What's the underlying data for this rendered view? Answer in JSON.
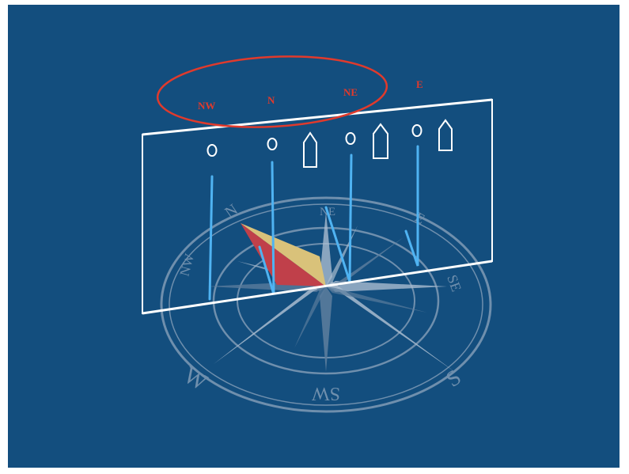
{
  "colors": {
    "background": "#134e7e",
    "compass_line": "#6f8fad",
    "star_light": "#a9bccf",
    "star_dark": "#5a7c9c",
    "pointer_red": "#c0404a",
    "pointer_yellow": "#d9c27a",
    "panel_outline": "#ffffff",
    "drop_lines": "#4fb3f2",
    "highlight_ellipse": "#e03a2c",
    "direction_text": "#e03a2c"
  },
  "compass": {
    "labels": {
      "n": "N",
      "ne": "NE",
      "e": "E",
      "se": "SE",
      "s": "S",
      "sw": "SW",
      "w": "W",
      "nw": "NW"
    }
  },
  "directions": {
    "nw": "NW",
    "n": "N",
    "ne": "NE",
    "e": "E"
  },
  "panel": {
    "markers": [
      {
        "name": "circle"
      },
      {
        "name": "circle"
      },
      {
        "name": "house"
      },
      {
        "name": "circle"
      },
      {
        "name": "house"
      },
      {
        "name": "circle"
      },
      {
        "name": "house"
      }
    ]
  }
}
